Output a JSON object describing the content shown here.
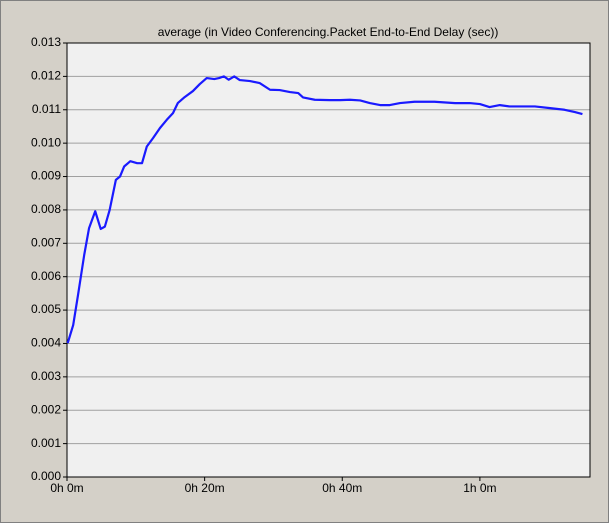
{
  "chart_data": {
    "type": "line",
    "title": "average (in Video Conferencing.Packet End-to-End Delay (sec))",
    "color": "#1a1aff",
    "grid": "y",
    "x": [
      0.1,
      0.9,
      1.6,
      2.5,
      3.2,
      4.1,
      4.9,
      5.5,
      6.2,
      7.1,
      7.7,
      8.3,
      9.2,
      10.2,
      10.9,
      11.6,
      12.5,
      13.5,
      14.5,
      15.4,
      16.1,
      17.1,
      18.3,
      19.3,
      20.3,
      21.4,
      22.1,
      22.8,
      23.5,
      24.3,
      25.1,
      26.6,
      28.0,
      29.5,
      30.9,
      32.4,
      33.6,
      34.3,
      36.0,
      38.2,
      39.7,
      41.1,
      42.6,
      44.0,
      45.5,
      46.9,
      48.4,
      50.5,
      53.4,
      56.4,
      58.5,
      60.0,
      61.4,
      62.9,
      64.3,
      65.8,
      68.0,
      70.2,
      72.3,
      73.8,
      74.9
    ],
    "values": [
      0.00401,
      0.00455,
      0.00545,
      0.00665,
      0.00745,
      0.00796,
      0.00743,
      0.0075,
      0.008,
      0.0089,
      0.009,
      0.0093,
      0.00946,
      0.0094,
      0.0094,
      0.0099,
      0.01015,
      0.01045,
      0.0107,
      0.0109,
      0.0112,
      0.01138,
      0.01156,
      0.01177,
      0.01195,
      0.01192,
      0.01195,
      0.012,
      0.0119,
      0.012,
      0.01189,
      0.01186,
      0.0118,
      0.0116,
      0.01159,
      0.01153,
      0.0115,
      0.01137,
      0.0113,
      0.01129,
      0.01129,
      0.0113,
      0.01128,
      0.0112,
      0.01114,
      0.01114,
      0.0112,
      0.01124,
      0.01124,
      0.0112,
      0.0112,
      0.01117,
      0.01108,
      0.01114,
      0.0111,
      0.0111,
      0.0111,
      0.01105,
      0.011,
      0.01093,
      0.01087
    ],
    "xlim": [
      0,
      76
    ],
    "xticks": [
      {
        "value": 0,
        "label": "0h 0m"
      },
      {
        "value": 20,
        "label": "0h 20m"
      },
      {
        "value": 40,
        "label": "0h 40m"
      },
      {
        "value": 60,
        "label": "1h 0m"
      }
    ],
    "ylim": [
      0,
      0.013
    ],
    "yticks": [
      {
        "value": 0,
        "label": "0.000"
      },
      {
        "value": 0.001,
        "label": "0.001"
      },
      {
        "value": 0.002,
        "label": "0.002"
      },
      {
        "value": 0.003,
        "label": "0.003"
      },
      {
        "value": 0.004,
        "label": "0.004"
      },
      {
        "value": 0.005,
        "label": "0.005"
      },
      {
        "value": 0.006,
        "label": "0.006"
      },
      {
        "value": 0.007,
        "label": "0.007"
      },
      {
        "value": 0.008,
        "label": "0.008"
      },
      {
        "value": 0.009,
        "label": "0.009"
      },
      {
        "value": 0.01,
        "label": "0.010"
      },
      {
        "value": 0.011,
        "label": "0.011"
      },
      {
        "value": 0.012,
        "label": "0.012"
      },
      {
        "value": 0.013,
        "label": "0.013"
      }
    ]
  }
}
